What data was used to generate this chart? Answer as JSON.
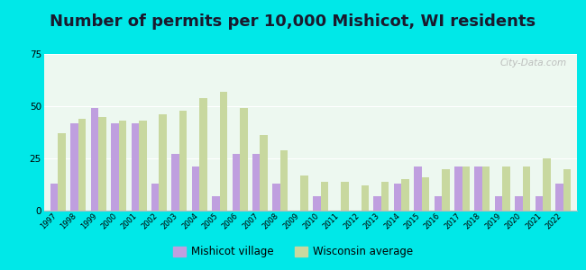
{
  "title": "Number of permits per 10,000 Mishicot, WI residents",
  "years": [
    1997,
    1998,
    1999,
    2000,
    2001,
    2002,
    2003,
    2004,
    2005,
    2006,
    2007,
    2008,
    2009,
    2010,
    2011,
    2012,
    2013,
    2014,
    2015,
    2016,
    2017,
    2018,
    2019,
    2020,
    2021,
    2022
  ],
  "mishicot": [
    13,
    42,
    49,
    42,
    42,
    13,
    27,
    21,
    7,
    27,
    27,
    13,
    0,
    7,
    0,
    0,
    7,
    13,
    21,
    7,
    21,
    21,
    7,
    7,
    7,
    13
  ],
  "wisconsin": [
    37,
    44,
    45,
    43,
    43,
    46,
    48,
    54,
    57,
    49,
    36,
    29,
    17,
    14,
    14,
    12,
    14,
    15,
    16,
    20,
    21,
    21,
    21,
    21,
    25,
    20
  ],
  "mishicot_color": "#bf9fdf",
  "wisconsin_color": "#c8d89f",
  "background_color": "#edf8f0",
  "outer_background": "#00e8e8",
  "ylim": [
    0,
    75
  ],
  "yticks": [
    0,
    25,
    50,
    75
  ],
  "title_fontsize": 13,
  "legend_mishicot": "Mishicot village",
  "legend_wisconsin": "Wisconsin average"
}
